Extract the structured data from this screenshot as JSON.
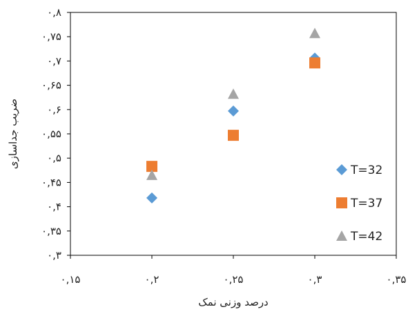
{
  "chart_data": {
    "type": "scatter",
    "title": "",
    "xlabel": "درصد وزنی نمک",
    "ylabel": "ضریب جداسازی",
    "xlim": [
      0.15,
      0.35
    ],
    "ylim": [
      0.3,
      0.8
    ],
    "x_ticks": [
      0.15,
      0.2,
      0.25,
      0.3,
      0.35
    ],
    "x_tick_labels": [
      "۰,۱۵",
      "۰,۲",
      "۰,۲۵",
      "۰,۳",
      "۰,۳۵"
    ],
    "y_ticks": [
      0.3,
      0.35,
      0.4,
      0.45,
      0.5,
      0.55,
      0.6,
      0.65,
      0.7,
      0.75,
      0.8
    ],
    "y_tick_labels": [
      "۰,۳",
      "۰,۳۵",
      "۰,۴",
      "۰,۴۵",
      "۰,۵",
      "۰,۵۵",
      "۰,۶",
      "۰,۶۵",
      "۰,۷",
      "۰,۷۵",
      "۰,۸"
    ],
    "grid": false,
    "legend_position": "right",
    "series": [
      {
        "name": "T=32",
        "marker": "diamond",
        "color": "#5B9BD5",
        "points": [
          {
            "x": 0.2,
            "y": 0.418
          },
          {
            "x": 0.25,
            "y": 0.597
          },
          {
            "x": 0.3,
            "y": 0.706
          }
        ]
      },
      {
        "name": "T=37",
        "marker": "square",
        "color": "#ED7D31",
        "points": [
          {
            "x": 0.2,
            "y": 0.483
          },
          {
            "x": 0.25,
            "y": 0.547
          },
          {
            "x": 0.3,
            "y": 0.696
          }
        ]
      },
      {
        "name": "T=42",
        "marker": "triangle",
        "color": "#A5A5A5",
        "points": [
          {
            "x": 0.2,
            "y": 0.465
          },
          {
            "x": 0.25,
            "y": 0.632
          },
          {
            "x": 0.3,
            "y": 0.757
          }
        ]
      }
    ]
  }
}
